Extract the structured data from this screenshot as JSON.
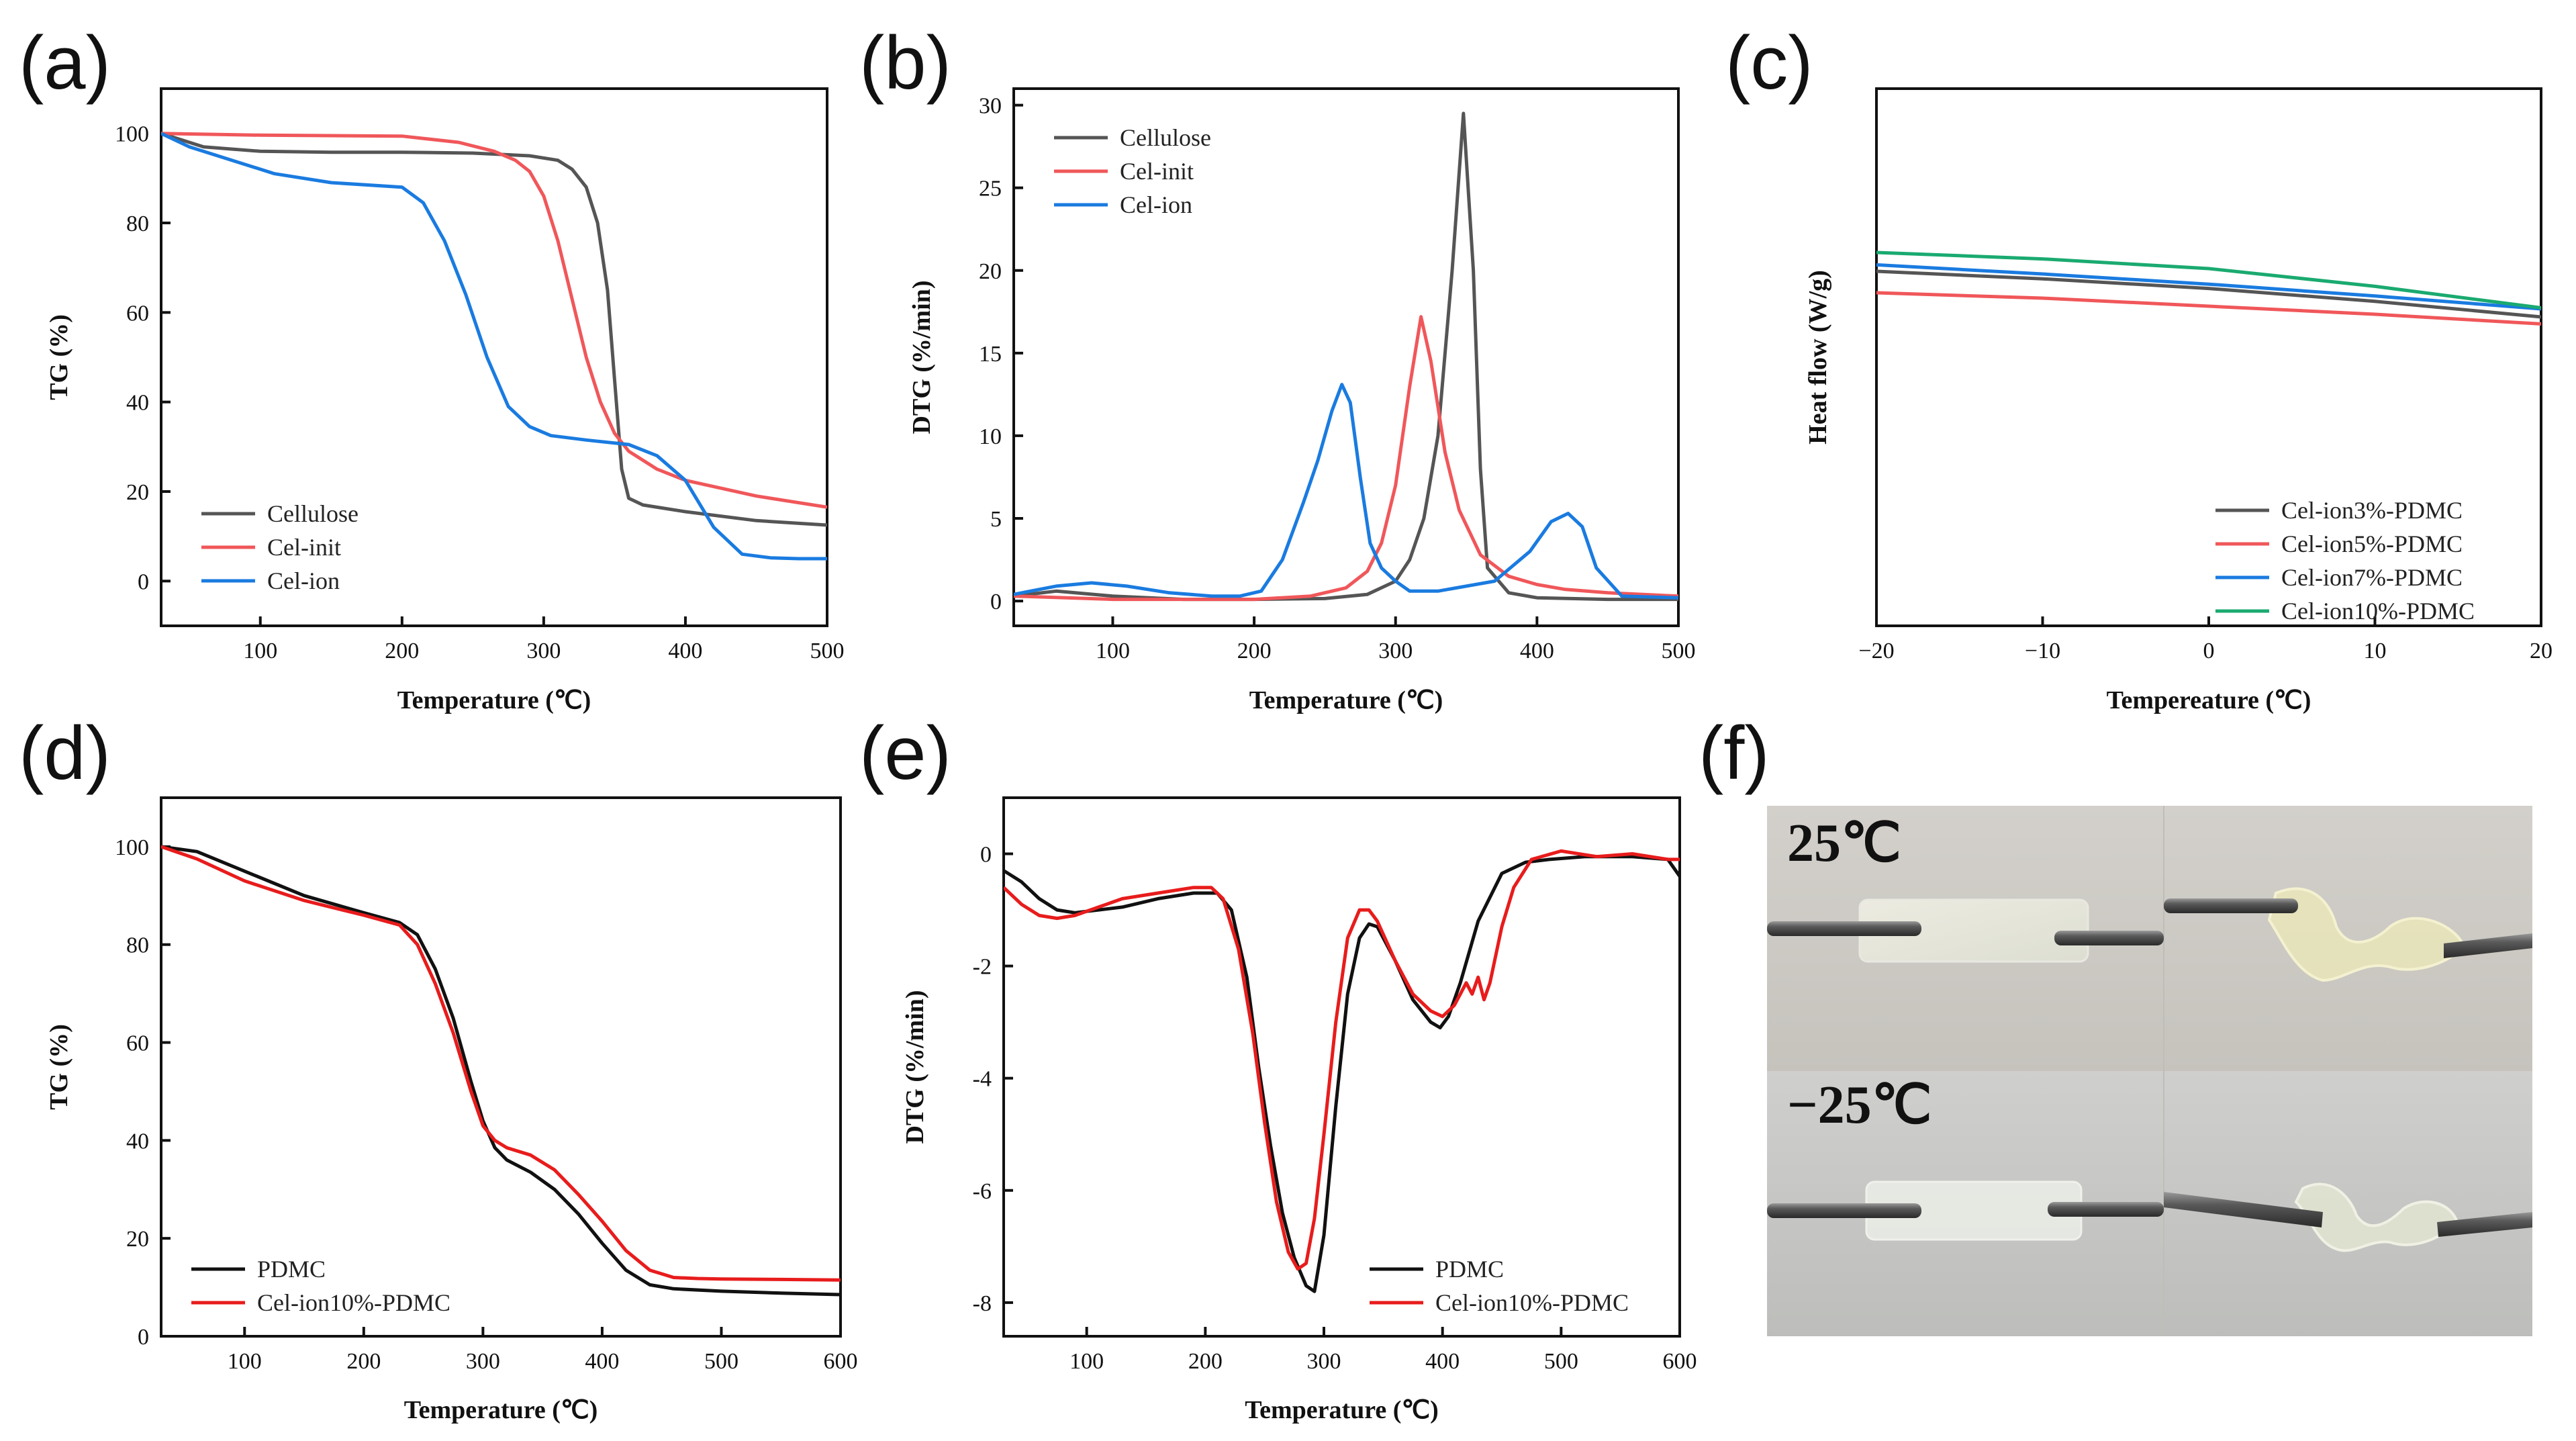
{
  "figure": {
    "letters": [
      "(a)",
      "(b)",
      "(c)",
      "(d)",
      "(e)",
      "(f)"
    ]
  },
  "chart_data": [
    {
      "panel": "(a)",
      "type": "line",
      "xlabel": "Temperature (℃)",
      "ylabel": "TG (%)",
      "xlim": [
        30,
        500
      ],
      "ylim": [
        -10,
        110
      ],
      "xticks": [
        100,
        200,
        300,
        400,
        500
      ],
      "yticks": [
        0,
        20,
        40,
        60,
        80,
        100
      ],
      "legend_position": "bottom-left",
      "series": [
        {
          "name": "Cellulose",
          "color": "#555555",
          "x": [
            30,
            60,
            100,
            150,
            200,
            250,
            290,
            310,
            320,
            330,
            338,
            345,
            350,
            355,
            360,
            370,
            400,
            450,
            500
          ],
          "y": [
            100,
            97,
            96,
            95.8,
            95.8,
            95.6,
            95,
            94,
            92,
            88,
            80,
            65,
            45,
            25,
            18.5,
            17,
            15.5,
            13.5,
            12.5
          ]
        },
        {
          "name": "Cel-init",
          "color": "#f0575a",
          "x": [
            30,
            100,
            200,
            240,
            265,
            280,
            290,
            300,
            310,
            320,
            330,
            340,
            350,
            360,
            380,
            400,
            450,
            500
          ],
          "y": [
            100,
            99.6,
            99.4,
            98,
            96,
            94,
            91.5,
            86,
            76,
            63,
            50,
            40,
            33,
            29,
            25,
            22.5,
            19,
            16.5
          ]
        },
        {
          "name": "Cel-ion",
          "color": "#1a7be0",
          "x": [
            30,
            50,
            80,
            110,
            150,
            200,
            215,
            230,
            245,
            260,
            275,
            290,
            305,
            330,
            360,
            380,
            400,
            420,
            440,
            460,
            480,
            500
          ],
          "y": [
            100,
            97,
            94,
            91,
            89,
            88,
            84.5,
            76,
            64,
            50,
            39,
            34.5,
            32.5,
            31.5,
            30.5,
            28,
            22.5,
            12,
            6,
            5.2,
            5,
            5
          ]
        }
      ]
    },
    {
      "panel": "(b)",
      "type": "line",
      "xlabel": "Temperature (℃)",
      "ylabel": "DTG (%/min)",
      "xlim": [
        30,
        500
      ],
      "ylim": [
        -1.5,
        31
      ],
      "xticks": [
        100,
        200,
        300,
        400,
        500
      ],
      "yticks": [
        0,
        5,
        10,
        15,
        20,
        25,
        30
      ],
      "legend_position": "top-left",
      "series": [
        {
          "name": "Cellulose",
          "color": "#555555",
          "x": [
            30,
            60,
            100,
            150,
            200,
            250,
            280,
            300,
            310,
            320,
            330,
            340,
            348,
            355,
            360,
            365,
            380,
            400,
            450,
            500
          ],
          "y": [
            0.3,
            0.6,
            0.3,
            0.1,
            0.1,
            0.15,
            0.4,
            1.2,
            2.5,
            5,
            10,
            20,
            29.5,
            20,
            8,
            2,
            0.5,
            0.2,
            0.1,
            0.1
          ]
        },
        {
          "name": "Cel-init",
          "color": "#f0575a",
          "x": [
            30,
            100,
            200,
            240,
            265,
            280,
            290,
            300,
            310,
            318,
            325,
            335,
            345,
            360,
            380,
            400,
            420,
            450,
            500
          ],
          "y": [
            0.3,
            0.1,
            0.1,
            0.3,
            0.8,
            1.8,
            3.5,
            7,
            13,
            17.2,
            14.5,
            9,
            5.5,
            2.8,
            1.5,
            1,
            0.7,
            0.5,
            0.3
          ]
        },
        {
          "name": "Cel-ion",
          "color": "#1a7be0",
          "x": [
            30,
            60,
            85,
            110,
            140,
            170,
            190,
            205,
            220,
            235,
            245,
            255,
            262,
            268,
            275,
            282,
            290,
            300,
            310,
            330,
            370,
            395,
            410,
            422,
            432,
            442,
            460,
            500
          ],
          "y": [
            0.4,
            0.9,
            1.1,
            0.9,
            0.5,
            0.3,
            0.3,
            0.6,
            2.5,
            6,
            8.5,
            11.5,
            13.1,
            12,
            7.5,
            3.5,
            2,
            1.2,
            0.6,
            0.6,
            1.2,
            3,
            4.8,
            5.3,
            4.5,
            2,
            0.3,
            0.2
          ]
        }
      ]
    },
    {
      "panel": "(c)",
      "type": "line",
      "xlabel": "Tempereature (℃)",
      "ylabel": "Heat flow (W/g)",
      "xlim": [
        -20,
        20
      ],
      "ylim": [
        0,
        1
      ],
      "xticks": [
        -20,
        -10,
        0,
        10,
        20
      ],
      "xtick_labels": [
        "−20",
        "−10",
        "0",
        "10",
        "20"
      ],
      "yticks": [],
      "legend_position": "bottom-right",
      "series": [
        {
          "name": "Cel-ion3%-PDMC",
          "color": "#555555",
          "x": [
            -20,
            -10,
            0,
            10,
            20
          ],
          "y": [
            0.66,
            0.646,
            0.628,
            0.604,
            0.575
          ]
        },
        {
          "name": "Cel-ion5%-PDMC",
          "color": "#f0575a",
          "x": [
            -20,
            -10,
            0,
            10,
            20
          ],
          "y": [
            0.62,
            0.61,
            0.595,
            0.58,
            0.562
          ]
        },
        {
          "name": "Cel-ion7%-PDMC",
          "color": "#1a7be0",
          "x": [
            -20,
            -10,
            0,
            10,
            20
          ],
          "y": [
            0.672,
            0.655,
            0.636,
            0.614,
            0.59
          ]
        },
        {
          "name": "Cel-ion10%-PDMC",
          "color": "#1aaa70",
          "x": [
            -20,
            -10,
            0,
            10,
            20
          ],
          "y": [
            0.695,
            0.683,
            0.665,
            0.632,
            0.592
          ]
        }
      ]
    },
    {
      "panel": "(d)",
      "type": "line",
      "xlabel": "Temperature (℃)",
      "ylabel": "TG (%)",
      "xlim": [
        30,
        600
      ],
      "ylim": [
        0,
        110
      ],
      "xticks": [
        100,
        200,
        300,
        400,
        500,
        600
      ],
      "yticks": [
        0,
        20,
        40,
        60,
        80,
        100
      ],
      "legend_position": "bottom-left",
      "series": [
        {
          "name": "PDMC",
          "color": "#111111",
          "x": [
            30,
            60,
            100,
            150,
            200,
            230,
            245,
            260,
            275,
            290,
            300,
            310,
            320,
            340,
            360,
            380,
            400,
            420,
            440,
            460,
            500,
            550,
            600
          ],
          "y": [
            100,
            99,
            95,
            90,
            86.5,
            84.5,
            82,
            75,
            65,
            52,
            44,
            38.5,
            36,
            33.5,
            30,
            25,
            19,
            13.5,
            10.5,
            9.7,
            9.2,
            8.8,
            8.5
          ]
        },
        {
          "name": "Cel-ion10%-PDMC",
          "color": "#e81c1c",
          "x": [
            30,
            60,
            100,
            150,
            200,
            230,
            245,
            260,
            275,
            290,
            300,
            310,
            320,
            340,
            360,
            380,
            400,
            420,
            440,
            460,
            480,
            500,
            550,
            600
          ],
          "y": [
            100,
            97.5,
            93,
            89,
            86,
            84,
            80,
            72,
            62,
            50,
            43,
            40,
            38.5,
            37,
            34,
            29,
            23.5,
            17.5,
            13.5,
            12,
            11.8,
            11.7,
            11.6,
            11.5
          ]
        }
      ]
    },
    {
      "panel": "(e)",
      "type": "line",
      "xlabel": "Temperature (℃)",
      "ylabel": "DTG (%/min)",
      "xlim": [
        30,
        600
      ],
      "ylim": [
        -8.6,
        1
      ],
      "xticks": [
        100,
        200,
        300,
        400,
        500,
        600
      ],
      "yticks": [
        -8,
        -6,
        -4,
        -2,
        0
      ],
      "legend_position": "bottom-right",
      "series": [
        {
          "name": "PDMC",
          "color": "#111111",
          "x": [
            30,
            45,
            60,
            75,
            90,
            110,
            130,
            160,
            190,
            210,
            222,
            235,
            245,
            255,
            265,
            275,
            285,
            292,
            300,
            310,
            320,
            330,
            338,
            345,
            360,
            375,
            390,
            398,
            405,
            415,
            430,
            450,
            470,
            490,
            520,
            560,
            590,
            600
          ],
          "y": [
            -0.3,
            -0.5,
            -0.8,
            -1.0,
            -1.05,
            -1.0,
            -0.95,
            -0.8,
            -0.7,
            -0.7,
            -1.0,
            -2.2,
            -3.8,
            -5.2,
            -6.4,
            -7.2,
            -7.7,
            -7.8,
            -6.8,
            -4.5,
            -2.5,
            -1.5,
            -1.25,
            -1.3,
            -1.9,
            -2.6,
            -3.0,
            -3.1,
            -2.9,
            -2.3,
            -1.2,
            -0.35,
            -0.15,
            -0.1,
            -0.05,
            -0.05,
            -0.1,
            -0.4
          ]
        },
        {
          "name": "Cel-ion10%-PDMC",
          "color": "#e81c1c",
          "x": [
            30,
            45,
            60,
            75,
            90,
            110,
            130,
            160,
            190,
            205,
            215,
            228,
            240,
            250,
            260,
            270,
            278,
            285,
            292,
            300,
            310,
            320,
            330,
            338,
            345,
            360,
            375,
            390,
            400,
            410,
            420,
            425,
            430,
            435,
            440,
            450,
            460,
            475,
            500,
            530,
            560,
            590,
            600
          ],
          "y": [
            -0.6,
            -0.9,
            -1.1,
            -1.15,
            -1.1,
            -0.95,
            -0.8,
            -0.7,
            -0.6,
            -0.6,
            -0.8,
            -1.7,
            -3.2,
            -4.8,
            -6.2,
            -7.1,
            -7.4,
            -7.3,
            -6.5,
            -5.0,
            -3.0,
            -1.5,
            -1.0,
            -1.0,
            -1.2,
            -1.9,
            -2.5,
            -2.8,
            -2.9,
            -2.7,
            -2.3,
            -2.5,
            -2.2,
            -2.6,
            -2.3,
            -1.3,
            -0.6,
            -0.1,
            0.05,
            -0.05,
            0.0,
            -0.1,
            -0.1
          ]
        }
      ]
    }
  ],
  "photo": {
    "label_top": "25℃",
    "label_bottom": "−25℃"
  }
}
